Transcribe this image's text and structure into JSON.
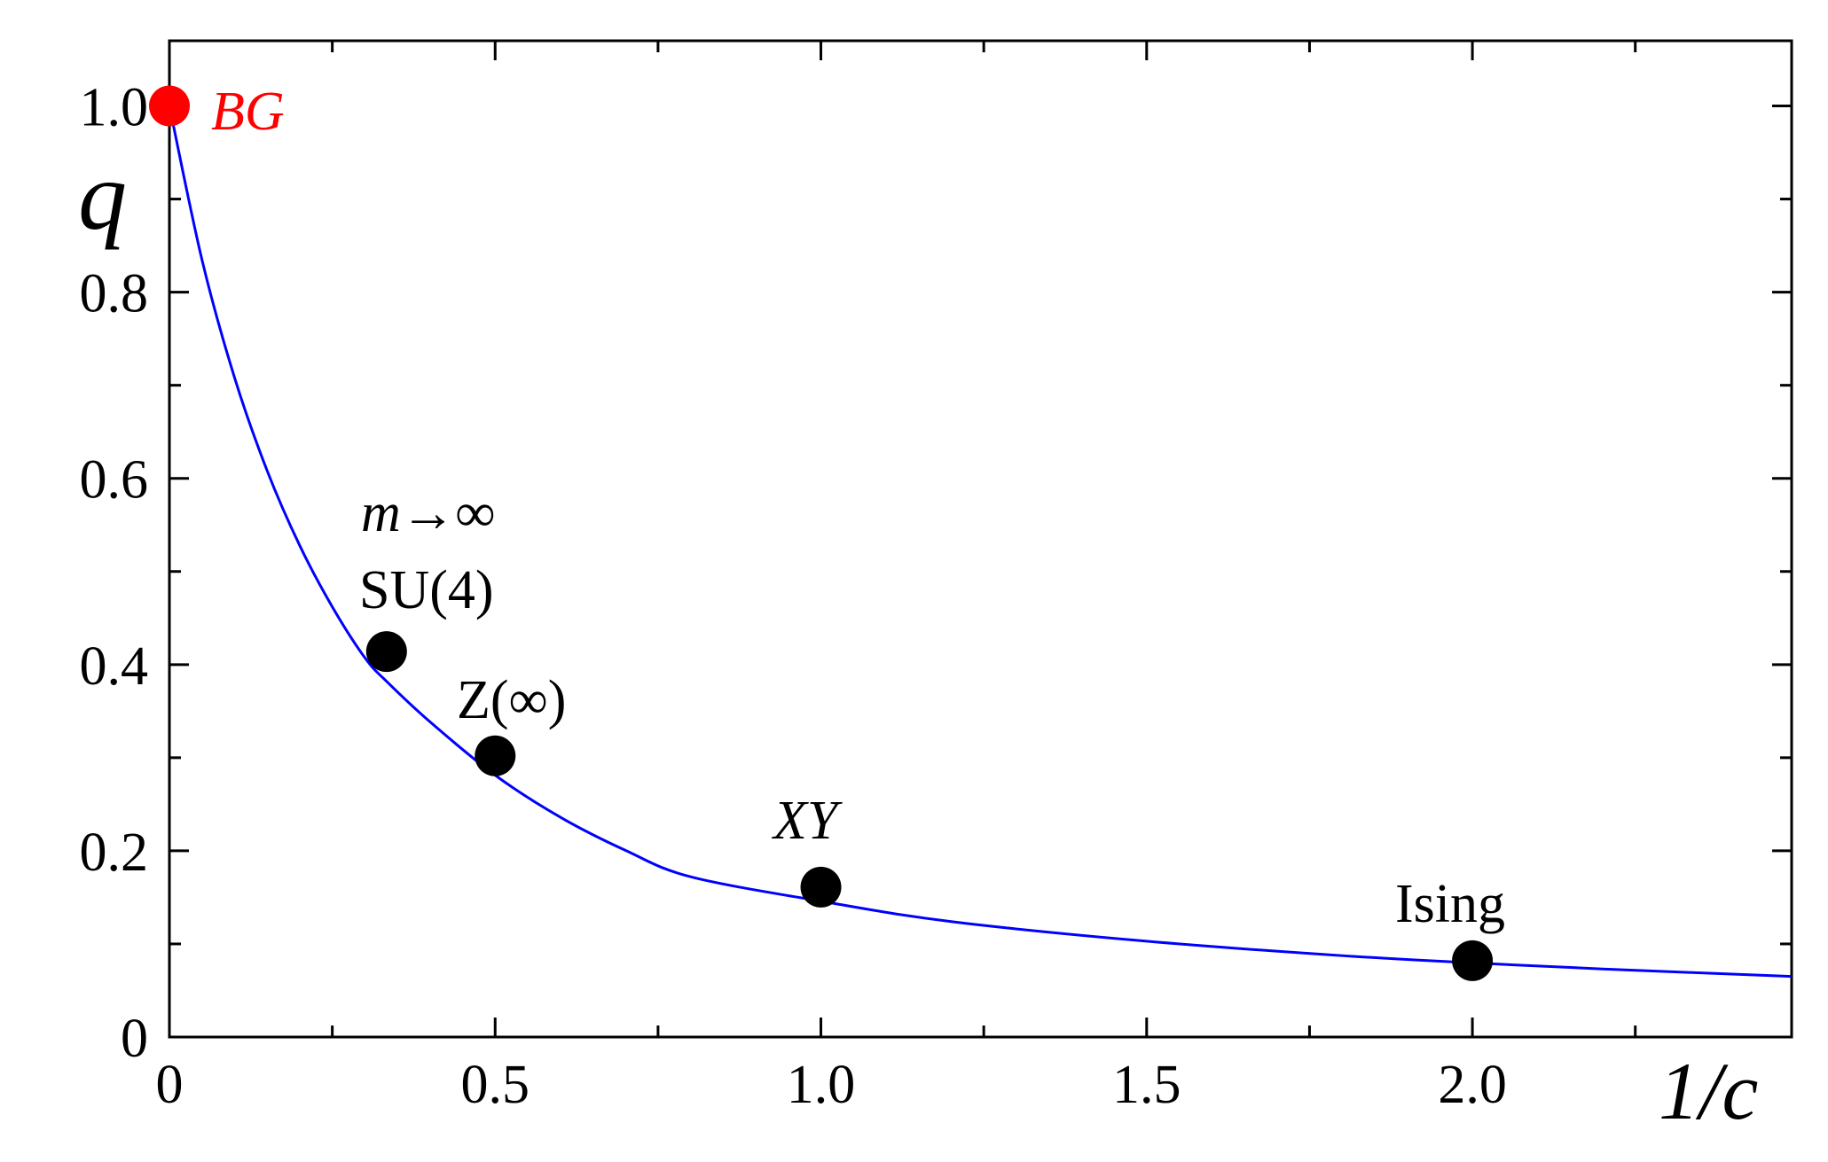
{
  "chart_data": {
    "type": "line",
    "title": "",
    "xlabel": "1/c",
    "ylabel": "q",
    "xlim": [
      0,
      2.49
    ],
    "ylim": [
      0,
      1.07
    ],
    "x_ticks": [
      0,
      0.5,
      1.0,
      1.5,
      2.0
    ],
    "x_tick_labels": [
      "0",
      "0.5",
      "1.0",
      "1.5",
      "2.0"
    ],
    "y_ticks": [
      0,
      0.2,
      0.4,
      0.6,
      0.8,
      1.0
    ],
    "y_tick_labels": [
      "0",
      "0.2",
      "0.4",
      "0.6",
      "0.8",
      "1.0"
    ],
    "grid": false,
    "curve": {
      "description_color": "#0000ff",
      "x": [
        0,
        0.05,
        0.1,
        0.15,
        0.2,
        0.25,
        0.3,
        0.3333,
        0.4,
        0.5,
        0.6,
        0.7,
        0.8,
        1.0,
        1.2,
        1.5,
        1.8,
        2.0,
        2.2,
        2.49
      ],
      "y": [
        1.0,
        0.8348,
        0.7082,
        0.6083,
        0.5279,
        0.4621,
        0.4074,
        0.382,
        0.3385,
        0.2812,
        0.2361,
        0.2005,
        0.1721,
        0.1459,
        0.124,
        0.1029,
        0.0874,
        0.0797,
        0.0731,
        0.0651
      ]
    },
    "points": [
      {
        "label": "BG",
        "x": 0,
        "y": 1.0,
        "color": "#ff0000"
      },
      {
        "label_top": "m→∞",
        "label": "SU(4)",
        "x": 0.3333,
        "y": 0.414,
        "color": "#000000"
      },
      {
        "label": "Z(∞)",
        "x": 0.5,
        "y": 0.302,
        "color": "#000000"
      },
      {
        "label": "XY",
        "x": 1.0,
        "y": 0.161,
        "color": "#000000"
      },
      {
        "label": "Ising",
        "x": 2.0,
        "y": 0.082,
        "color": "#000000"
      }
    ],
    "colors": {
      "curve": "#0000ff",
      "bg_point": "#ff0000",
      "points": "#000000"
    }
  }
}
